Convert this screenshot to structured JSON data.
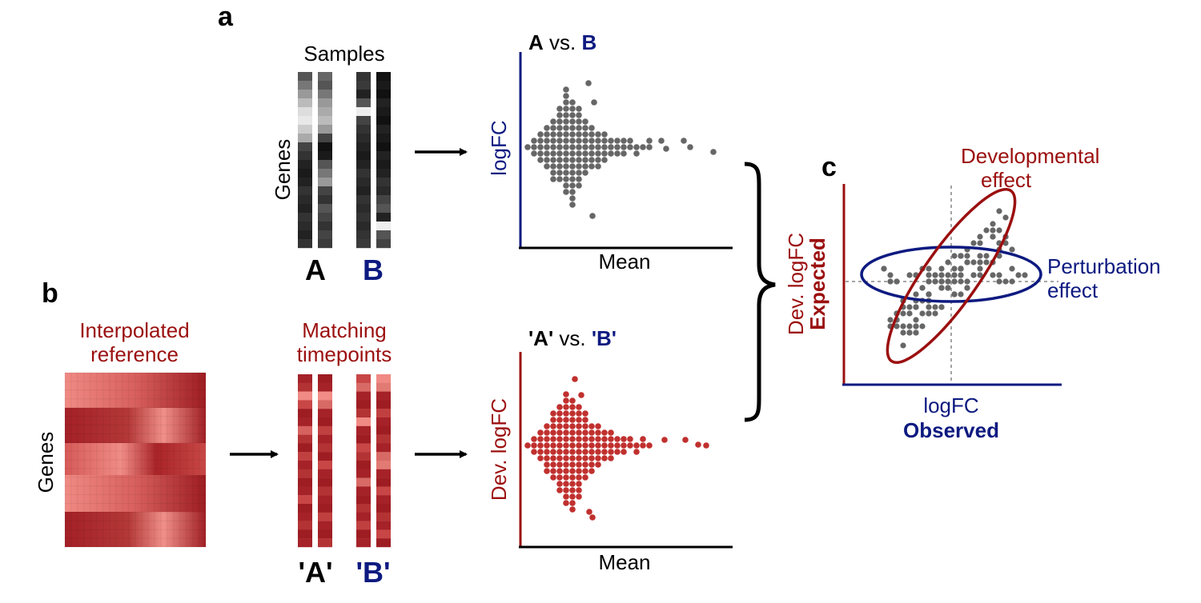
{
  "panels": {
    "a": "a",
    "b": "b",
    "c": "c"
  },
  "panel_a": {
    "samples_title": "Samples",
    "genes_label": "Genes",
    "label_A": "A",
    "label_B": "B",
    "plot_title_left": "A",
    "plot_title_vs": " vs. ",
    "plot_title_right": "B",
    "ylabel": "logFC",
    "xlabel": "Mean"
  },
  "panel_b": {
    "reference_title_line1": "Interpolated",
    "reference_title_line2": "reference",
    "genes_label": "Genes",
    "matching_title_line1": "Matching",
    "matching_title_line2": "timepoints",
    "label_A": "'A'",
    "label_B": "'B'",
    "plot_title_left": "'A'",
    "plot_title_vs": " vs. ",
    "plot_title_right": "'B'",
    "ylabel": "Dev. logFC",
    "xlabel": "Mean"
  },
  "panel_c": {
    "ylabel_line1": "Dev. logFC",
    "ylabel_line2": "Expected",
    "xlabel_line1": "logFC",
    "xlabel_line2": "Observed",
    "developmental_line1": "Developmental",
    "developmental_line2": "effect",
    "perturbation_line1": "Perturbation",
    "perturbation_line2": "effect"
  },
  "colors": {
    "navy": "#0d1a80",
    "darkred": "#9b0f0f",
    "dot_gray": "#666666",
    "dot_red": "#c0302e"
  },
  "icons": {
    "brace": "right-curly-brace",
    "arrow": "right-arrow"
  }
}
